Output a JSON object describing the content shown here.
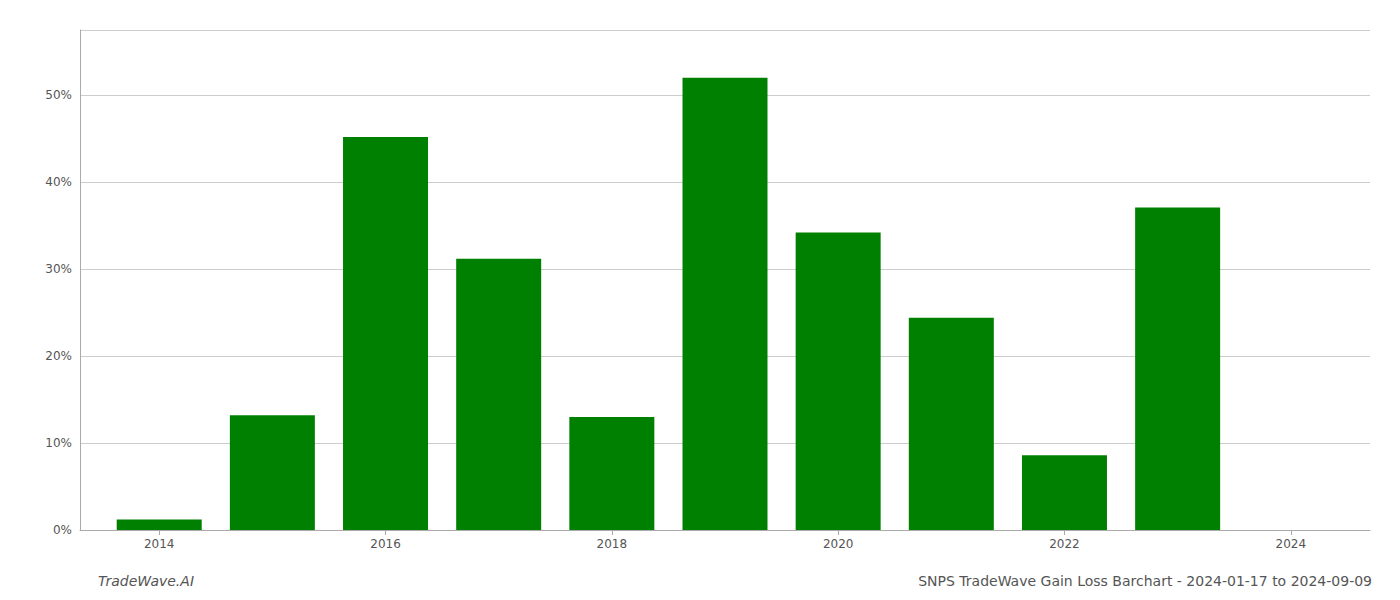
{
  "chart_data": {
    "type": "bar",
    "x": [
      2014,
      2015,
      2016,
      2017,
      2018,
      2019,
      2020,
      2021,
      2022,
      2023
    ],
    "values": [
      0.012,
      0.132,
      0.452,
      0.312,
      0.13,
      0.52,
      0.342,
      0.244,
      0.086,
      0.371
    ],
    "color": "#008000",
    "xlim": [
      2013.3,
      2024.7
    ],
    "xticks": [
      2014,
      2016,
      2018,
      2020,
      2022,
      2024
    ],
    "ylim": [
      0,
      0.575
    ],
    "yticks": [
      {
        "value": 0,
        "label": "0%"
      },
      {
        "value": 0.1,
        "label": "10%"
      },
      {
        "value": 0.2,
        "label": "20%"
      },
      {
        "value": 0.3,
        "label": "30%"
      },
      {
        "value": 0.4,
        "label": "40%"
      },
      {
        "value": 0.5,
        "label": "50%"
      }
    ],
    "grid": true,
    "annotations": [
      {
        "text": "TradeWave.AI"
      },
      {
        "text": "SNPS TradeWave Gain Loss Barchart - 2024-01-17 to 2024-09-09"
      }
    ]
  }
}
